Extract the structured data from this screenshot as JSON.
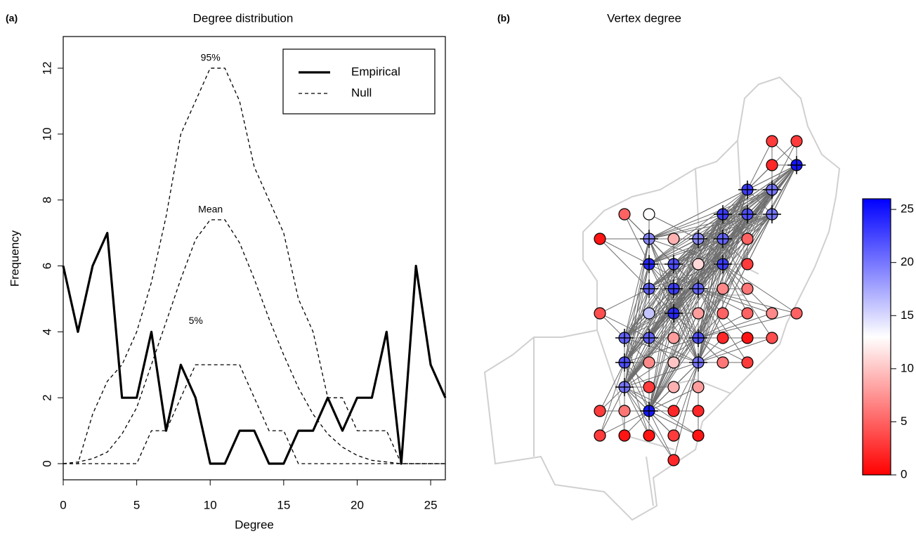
{
  "chart_data": [
    {
      "type": "line",
      "panel_label": "(a)",
      "title": "Degree distribution",
      "x_label": "Degree",
      "y_label": "Frequency",
      "x": [
        0,
        1,
        2,
        3,
        4,
        5,
        6,
        7,
        8,
        9,
        10,
        11,
        12,
        13,
        14,
        15,
        16,
        17,
        18,
        19,
        20,
        21,
        22,
        23,
        24,
        25,
        26
      ],
      "series": [
        {
          "name": "Empirical",
          "style": "solid",
          "color": "#000000",
          "values": [
            6,
            4,
            6,
            7,
            2,
            2,
            4,
            1,
            3,
            2,
            0,
            0,
            1,
            1,
            0,
            0,
            1,
            1,
            2,
            1,
            2,
            2,
            4,
            0,
            6,
            3,
            2
          ]
        },
        {
          "name": "95%",
          "style": "dashed",
          "color": "#000000",
          "values": [
            0,
            0,
            1.5,
            2.5,
            3,
            4,
            5.5,
            7.5,
            10,
            11,
            12,
            12,
            11,
            9,
            8,
            7,
            5,
            4,
            2,
            2,
            1,
            1,
            1,
            0,
            0,
            0,
            0
          ]
        },
        {
          "name": "Mean",
          "style": "dashed",
          "color": "#000000",
          "values": [
            0,
            0.05,
            0.15,
            0.35,
            0.9,
            1.7,
            3,
            4.3,
            5.6,
            6.8,
            7.4,
            7.4,
            6.7,
            5.6,
            4.4,
            3.3,
            2.3,
            1.5,
            0.9,
            0.5,
            0.25,
            0.1,
            0.05,
            0,
            0,
            0,
            0
          ]
        },
        {
          "name": "5%",
          "style": "dashed",
          "color": "#000000",
          "values": [
            0,
            0,
            0,
            0,
            0,
            0,
            1,
            1,
            2,
            3,
            3,
            3,
            3,
            2,
            1,
            1,
            0,
            0,
            0,
            0,
            0,
            0,
            0,
            0,
            0,
            0,
            0
          ]
        }
      ],
      "legend": [
        {
          "label": "Empirical",
          "style": "solid"
        },
        {
          "label": "Null",
          "style": "dashed"
        }
      ],
      "legend_position": "top-right",
      "xlim": [
        0,
        26
      ],
      "ylim": [
        -0.49,
        12.96
      ],
      "xticks": [
        0,
        5,
        10,
        15,
        20,
        25
      ],
      "yticks": [
        0,
        2,
        4,
        6,
        8,
        10,
        12
      ],
      "grid": false
    },
    {
      "type": "network-map",
      "panel_label": "(b)",
      "title": "Vertex degree",
      "nodes": [
        {
          "degree": 3,
          "crossed": false
        },
        {
          "degree": 3,
          "crossed": false
        },
        {
          "degree": 2,
          "crossed": false
        },
        {
          "degree": 25,
          "crossed": true
        },
        {
          "degree": 23,
          "crossed": true
        },
        {
          "degree": 20,
          "crossed": true
        },
        {
          "degree": 5,
          "crossed": false
        },
        {
          "degree": 13,
          "crossed": false
        },
        {
          "degree": 23,
          "crossed": true
        },
        {
          "degree": 22,
          "crossed": true
        },
        {
          "degree": 20,
          "crossed": true
        },
        {
          "degree": 1,
          "crossed": false
        },
        {
          "degree": 19,
          "crossed": true
        },
        {
          "degree": 9,
          "crossed": false
        },
        {
          "degree": 19,
          "crossed": true
        },
        {
          "degree": 21,
          "crossed": true
        },
        {
          "degree": 5,
          "crossed": false
        },
        {
          "degree": 24,
          "crossed": true
        },
        {
          "degree": 22,
          "crossed": true
        },
        {
          "degree": 11,
          "crossed": false
        },
        {
          "degree": 23,
          "crossed": true
        },
        {
          "degree": 3,
          "crossed": false
        },
        {
          "degree": 21,
          "crossed": true
        },
        {
          "degree": 23,
          "crossed": true
        },
        {
          "degree": 21,
          "crossed": true
        },
        {
          "degree": 7,
          "crossed": false
        },
        {
          "degree": 6,
          "crossed": false
        },
        {
          "degree": 4,
          "crossed": false
        },
        {
          "degree": 16,
          "crossed": false
        },
        {
          "degree": 24,
          "crossed": true
        },
        {
          "degree": 8,
          "crossed": false
        },
        {
          "degree": 5,
          "crossed": false
        },
        {
          "degree": 5,
          "crossed": false
        },
        {
          "degree": 7,
          "crossed": false
        },
        {
          "degree": 5,
          "crossed": false
        },
        {
          "degree": 21,
          "crossed": true
        },
        {
          "degree": 21,
          "crossed": true
        },
        {
          "degree": 8,
          "crossed": false
        },
        {
          "degree": 22,
          "crossed": true
        },
        {
          "degree": 2,
          "crossed": false
        },
        {
          "degree": 1,
          "crossed": false
        },
        {
          "degree": 4,
          "crossed": false
        },
        {
          "degree": 22,
          "crossed": true
        },
        {
          "degree": 7,
          "crossed": false
        },
        {
          "degree": 10,
          "crossed": false
        },
        {
          "degree": 20,
          "crossed": true
        },
        {
          "degree": 6,
          "crossed": false
        },
        {
          "degree": 3,
          "crossed": false
        },
        {
          "degree": 20,
          "crossed": true
        },
        {
          "degree": 3,
          "crossed": false
        },
        {
          "degree": 9,
          "crossed": false
        },
        {
          "degree": 8,
          "crossed": false
        },
        {
          "degree": 3,
          "crossed": false
        },
        {
          "degree": 6,
          "crossed": false
        },
        {
          "degree": 25,
          "crossed": true
        },
        {
          "degree": 2,
          "crossed": false
        },
        {
          "degree": 2,
          "crossed": false
        },
        {
          "degree": 3,
          "crossed": false
        },
        {
          "degree": 1,
          "crossed": false
        },
        {
          "degree": 1,
          "crossed": false
        },
        {
          "degree": 3,
          "crossed": false
        },
        {
          "degree": 1,
          "crossed": false
        },
        {
          "degree": 2,
          "crossed": false
        }
      ],
      "colorbar": {
        "lim": [
          0,
          26
        ],
        "ticks": [
          0,
          5,
          10,
          15,
          20,
          25
        ],
        "low": "#ff0000",
        "mid": "#ffffff",
        "high": "#0000ff"
      }
    }
  ]
}
